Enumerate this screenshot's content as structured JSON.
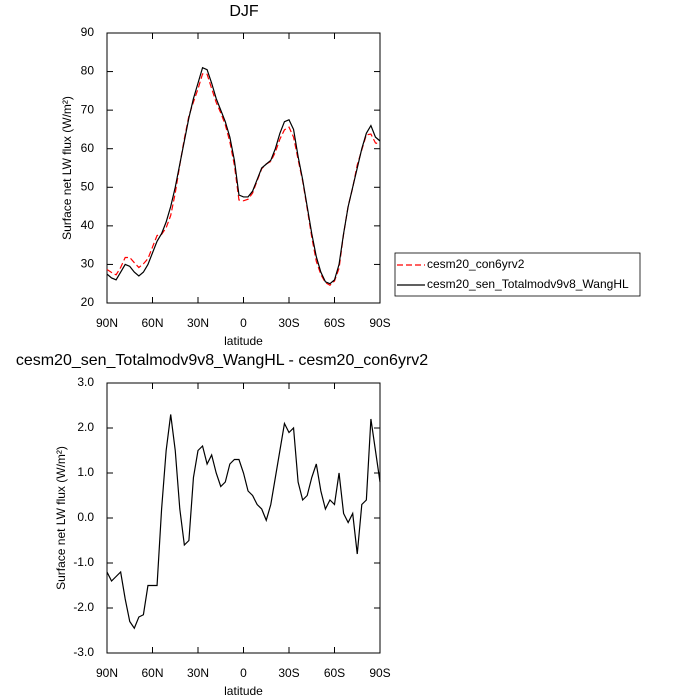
{
  "chart_data": [
    {
      "type": "line",
      "title": "DJF",
      "ylabel": "Surface net LW flux (W/m²)",
      "xlabel": "latitude",
      "x": [
        90,
        87,
        84,
        81,
        78,
        75,
        72,
        69,
        66,
        63,
        60,
        57,
        54,
        51,
        48,
        45,
        42,
        39,
        36,
        33,
        30,
        27,
        24,
        21,
        18,
        15,
        12,
        9,
        6,
        3,
        0,
        -3,
        -6,
        -9,
        -12,
        -15,
        -18,
        -21,
        -24,
        -27,
        -30,
        -33,
        -36,
        -39,
        -42,
        -45,
        -48,
        -51,
        -54,
        -57,
        -60,
        -63,
        -66,
        -69,
        -72,
        -75,
        -78,
        -81,
        -84,
        -87,
        -90
      ],
      "xlim": [
        90,
        -90
      ],
      "xticks": [
        {
          "value": 90,
          "label": "90N"
        },
        {
          "value": 60,
          "label": "60N"
        },
        {
          "value": 30,
          "label": "30N"
        },
        0,
        {
          "value": -30,
          "label": "30S"
        },
        {
          "value": -60,
          "label": "60S"
        },
        {
          "value": -90,
          "label": "90S"
        }
      ],
      "ylim": [
        20,
        90
      ],
      "yticks": [
        20,
        30,
        40,
        50,
        60,
        70,
        80,
        90
      ],
      "legend": "right",
      "series": [
        {
          "name": "cesm20_con6yrv2",
          "color": "#ff0000",
          "dash": "dashed",
          "values": [
            28.7,
            27.9,
            27.3,
            29.2,
            31.8,
            31.8,
            30.45,
            29.2,
            30.15,
            31.5,
            34.5,
            37.5,
            37.8,
            39.5,
            42.7,
            48.5,
            55.8,
            62.6,
            68.5,
            72.1,
            75.5,
            79.4,
            79.3,
            75.6,
            72,
            69.3,
            66.2,
            61.8,
            55.7,
            46.7,
            46.5,
            46.9,
            48.5,
            51.7,
            54.8,
            56.05,
            56.7,
            59.1,
            62.5,
            64.9,
            65.6,
            63,
            57.2,
            51.6,
            44.5,
            37.1,
            30.8,
            27.4,
            25.3,
            24.6,
            25.7,
            29,
            37.9,
            45.1,
            49.9,
            55.8,
            59.7,
            63.6,
            63.8,
            61.5,
            61.2
          ]
        },
        {
          "name": "cesm20_sen_Totalmodv9v8_WangHL",
          "color": "#000000",
          "dash": "solid",
          "values": [
            27.5,
            26.5,
            26,
            28,
            30,
            29.5,
            28,
            27,
            28,
            30,
            33,
            36,
            38,
            41,
            45,
            50,
            56,
            62,
            68,
            73,
            77,
            81,
            80.5,
            77,
            73,
            70,
            67,
            63,
            57,
            48,
            47.5,
            47.5,
            49,
            52,
            55,
            56,
            57,
            60,
            64,
            67,
            67.5,
            65,
            58,
            52,
            45,
            38,
            32,
            28,
            25.5,
            25,
            26,
            30,
            38,
            45,
            50,
            55,
            60,
            64,
            66,
            63,
            62
          ]
        }
      ]
    },
    {
      "type": "line",
      "title": "cesm20_sen_Totalmodv9v8_WangHL - cesm20_con6yrv2",
      "ylabel": "Surface net LW flux (W/m²)",
      "xlabel": "latitude",
      "x": [
        90,
        87,
        84,
        81,
        78,
        75,
        72,
        69,
        66,
        63,
        60,
        57,
        54,
        51,
        48,
        45,
        42,
        39,
        36,
        33,
        30,
        27,
        24,
        21,
        18,
        15,
        12,
        9,
        6,
        3,
        0,
        -3,
        -6,
        -9,
        -12,
        -15,
        -18,
        -21,
        -24,
        -27,
        -30,
        -33,
        -36,
        -39,
        -42,
        -45,
        -48,
        -51,
        -54,
        -57,
        -60,
        -63,
        -66,
        -69,
        -72,
        -75,
        -78,
        -81,
        -84,
        -87,
        -90
      ],
      "xlim": [
        90,
        -90
      ],
      "xticks": [
        {
          "value": 90,
          "label": "90N"
        },
        {
          "value": 60,
          "label": "60N"
        },
        {
          "value": 30,
          "label": "30N"
        },
        0,
        {
          "value": -30,
          "label": "30S"
        },
        {
          "value": -60,
          "label": "60S"
        },
        {
          "value": -90,
          "label": "90S"
        }
      ],
      "ylim": [
        -3,
        3
      ],
      "yticks": [
        {
          "value": -3,
          "label": "-3.0"
        },
        {
          "value": -2,
          "label": "-2.0"
        },
        {
          "value": -1,
          "label": "-1.0"
        },
        {
          "value": 0,
          "label": "0.0"
        },
        {
          "value": 1,
          "label": "1.0"
        },
        {
          "value": 2,
          "label": "2.0"
        },
        {
          "value": 3,
          "label": "3.0"
        }
      ],
      "color": "#000000",
      "values": [
        -1.2,
        -1.4,
        -1.3,
        -1.2,
        -1.8,
        -2.3,
        -2.45,
        -2.2,
        -2.15,
        -1.5,
        -1.5,
        -1.5,
        0.2,
        1.5,
        2.3,
        1.5,
        0.2,
        -0.6,
        -0.5,
        0.9,
        1.5,
        1.6,
        1.2,
        1.4,
        1.0,
        0.7,
        0.8,
        1.2,
        1.3,
        1.3,
        1.0,
        0.6,
        0.5,
        0.3,
        0.2,
        -0.05,
        0.3,
        0.9,
        1.5,
        2.1,
        1.9,
        2.0,
        0.8,
        0.4,
        0.5,
        0.9,
        1.2,
        0.6,
        0.2,
        0.4,
        0.3,
        1.0,
        0.1,
        -0.1,
        0.1,
        -0.8,
        0.3,
        0.4,
        2.2,
        1.5,
        0.8
      ]
    }
  ]
}
